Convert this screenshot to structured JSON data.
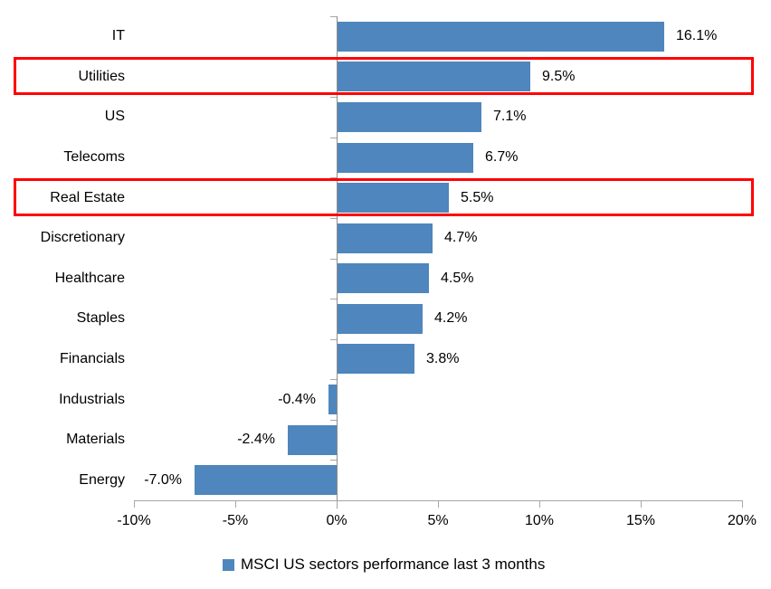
{
  "chart_data": {
    "type": "bar",
    "orientation": "horizontal",
    "title": "",
    "xlabel": "",
    "ylabel": "",
    "categories": [
      "IT",
      "Utilities",
      "US",
      "Telecoms",
      "Real Estate",
      "Discretionary",
      "Healthcare",
      "Staples",
      "Financials",
      "Industrials",
      "Materials",
      "Energy"
    ],
    "values": [
      16.1,
      9.5,
      7.1,
      6.7,
      5.5,
      4.7,
      4.5,
      4.2,
      3.8,
      -0.4,
      -2.4,
      -7.0
    ],
    "value_labels": [
      "16.1%",
      "9.5%",
      "7.1%",
      "6.7%",
      "5.5%",
      "4.7%",
      "4.5%",
      "4.2%",
      "3.8%",
      "-0.4%",
      "-2.4%",
      "-7.0%"
    ],
    "x_ticks": [
      "-10%",
      "-5%",
      "0%",
      "5%",
      "10%",
      "15%",
      "20%"
    ],
    "x_tick_values": [
      -10,
      -5,
      0,
      5,
      10,
      15,
      20
    ],
    "xlim": [
      -10,
      20
    ],
    "grid": false,
    "legend": "MSCI US sectors performance last 3 months",
    "legend_position": "bottom",
    "bar_color": "#4e86bd",
    "axis_color": "#a6a6a6",
    "zero_line_color": "#8c8c8c",
    "highlight_color": "#ff0000",
    "highlighted_categories": [
      "Utilities",
      "Real Estate"
    ]
  }
}
